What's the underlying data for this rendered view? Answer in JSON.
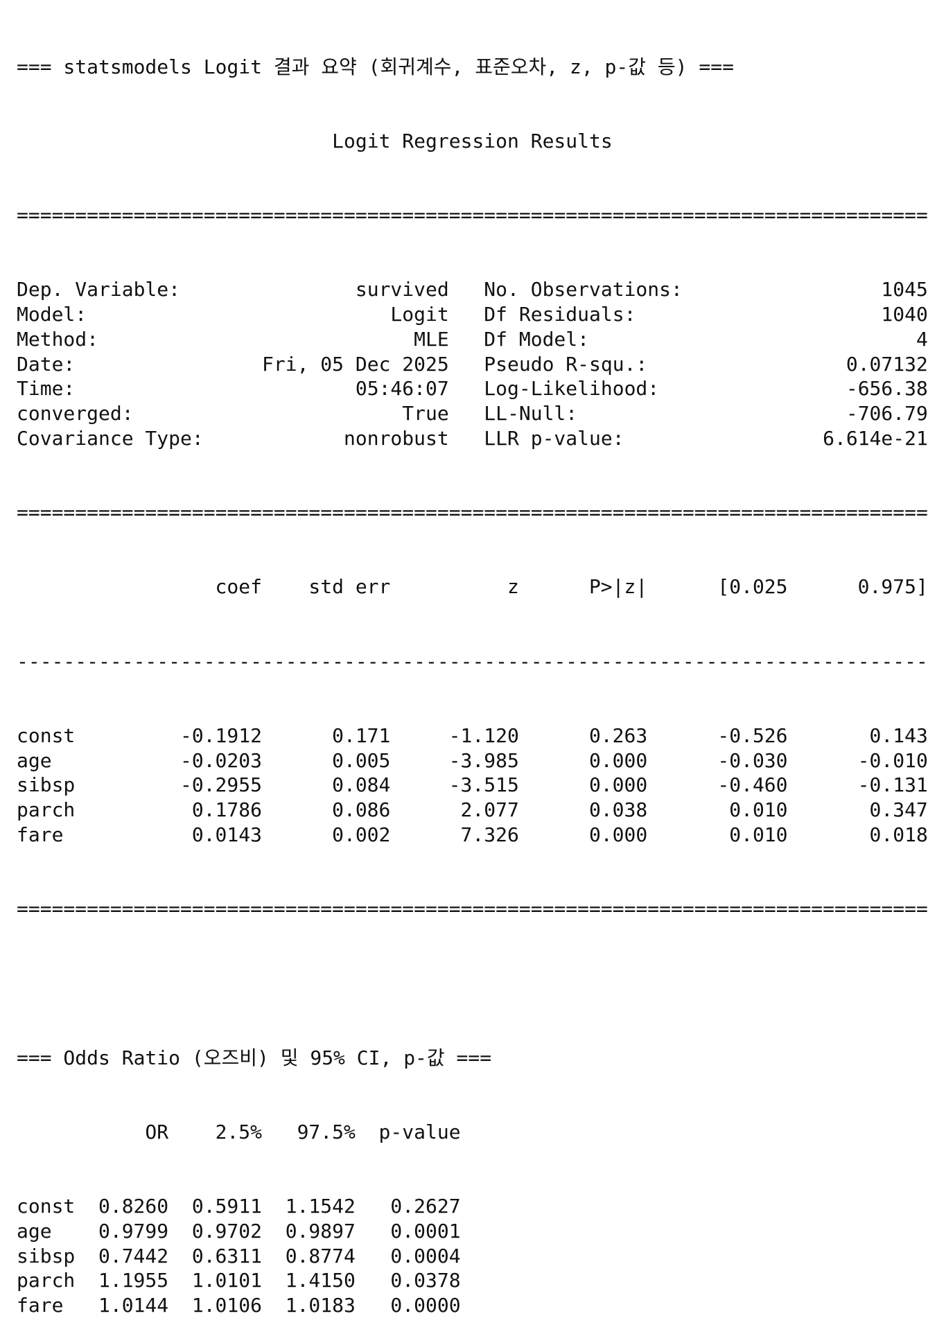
{
  "title": "=== statsmodels Logit 결과 요약 (회귀계수, 표준오차, z, p-값 등) ===",
  "summary": {
    "heading": "Logit Regression Results",
    "double_rule_char": "=",
    "single_rule_char": "-",
    "info_rows": [
      {
        "left_label": "Dep. Variable:",
        "left_value": "survived",
        "right_label": "No. Observations:",
        "right_value": "1045"
      },
      {
        "left_label": "Model:",
        "left_value": "Logit",
        "right_label": "Df Residuals:",
        "right_value": "1040"
      },
      {
        "left_label": "Method:",
        "left_value": "MLE",
        "right_label": "Df Model:",
        "right_value": "4"
      },
      {
        "left_label": "Date:",
        "left_value": "Fri, 05 Dec 2025",
        "right_label": "Pseudo R-squ.:",
        "right_value": "0.07132"
      },
      {
        "left_label": "Time:",
        "left_value": "05:46:07",
        "right_label": "Log-Likelihood:",
        "right_value": "-656.38"
      },
      {
        "left_label": "converged:",
        "left_value": "True",
        "right_label": "LL-Null:",
        "right_value": "-706.79"
      },
      {
        "left_label": "Covariance Type:",
        "left_value": "nonrobust",
        "right_label": "LLR p-value:",
        "right_value": "6.614e-21"
      }
    ],
    "coef_table": {
      "headers": [
        "",
        "coef",
        "std err",
        "z",
        "P>|z|",
        "[0.025",
        "0.975]"
      ],
      "rows": [
        [
          "const",
          "-0.1912",
          "0.171",
          "-1.120",
          "0.263",
          "-0.526",
          "0.143"
        ],
        [
          "age",
          "-0.0203",
          "0.005",
          "-3.985",
          "0.000",
          "-0.030",
          "-0.010"
        ],
        [
          "sibsp",
          "-0.2955",
          "0.084",
          "-3.515",
          "0.000",
          "-0.460",
          "-0.131"
        ],
        [
          "parch",
          "0.1786",
          "0.086",
          "2.077",
          "0.038",
          "0.010",
          "0.347"
        ],
        [
          "fare",
          "0.0143",
          "0.002",
          "7.326",
          "0.000",
          "0.010",
          "0.018"
        ]
      ]
    }
  },
  "odds": {
    "title": "=== Odds Ratio (오즈비) 및 95% CI, p-값 ===",
    "headers": [
      "",
      "OR",
      "2.5%",
      "97.5%",
      "p-value"
    ],
    "rows": [
      [
        "const",
        "0.8260",
        "0.5911",
        "1.1542",
        "0.2627"
      ],
      [
        "age",
        "0.9799",
        "0.9702",
        "0.9897",
        "0.0001"
      ],
      [
        "sibsp",
        "0.7442",
        "0.6311",
        "0.8774",
        "0.0004"
      ],
      [
        "parch",
        "1.1955",
        "1.0101",
        "1.4150",
        "0.0378"
      ],
      [
        "fare",
        "1.0144",
        "1.0106",
        "1.0183",
        "0.0000"
      ]
    ]
  }
}
